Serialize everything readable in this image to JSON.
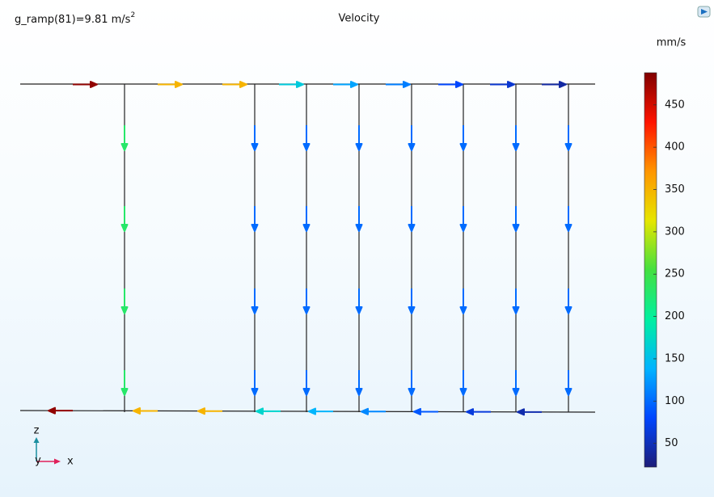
{
  "chart_data": {
    "type": "quiver",
    "title": "Velocity",
    "annotation": "g_ramp(81)=9.81 m/s",
    "annotation_exponent": "2",
    "colorbar_label": "mm/s",
    "clim": [
      22,
      488
    ],
    "cticks": [
      50,
      100,
      150,
      200,
      250,
      300,
      350,
      400,
      450
    ],
    "colormap": [
      "#1c1c78",
      "#0046ff",
      "#00b4ff",
      "#00f0a0",
      "#44e040",
      "#e6e600",
      "#ff9600",
      "#ff1400",
      "#800000"
    ],
    "top_pipe": {
      "values": [
        480,
        350,
        350,
        160,
        130,
        110,
        80,
        60,
        40
      ]
    },
    "bottom_pipe": {
      "values": [
        480,
        350,
        350,
        170,
        140,
        115,
        90,
        65,
        45
      ]
    },
    "legs": {
      "values": [
        230,
        100,
        100,
        100,
        100,
        100,
        100,
        100
      ]
    },
    "axes": {
      "z": "z",
      "y": "y",
      "x": "x"
    }
  }
}
